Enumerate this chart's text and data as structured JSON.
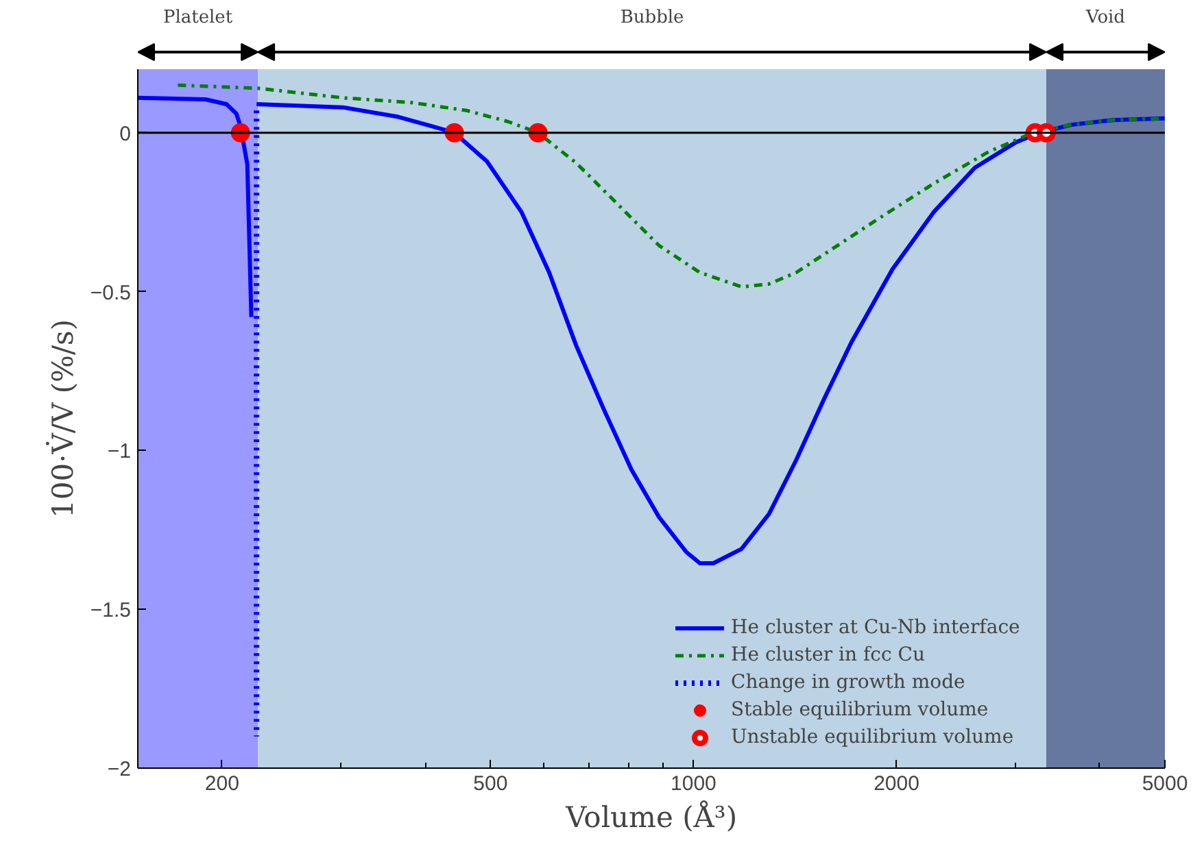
{
  "chart_data": {
    "type": "line",
    "xlabel": "Volume (Å³)",
    "ylabel": "100·V̇/V (%/s)",
    "log": "x",
    "xlim": [
      150,
      5000
    ],
    "ylim": [
      -2,
      0.2
    ],
    "xticks": [
      200,
      {
        "value": 300,
        "label": null
      },
      {
        "value": 400,
        "label": null
      },
      500,
      {
        "value": 600,
        "label": null
      },
      {
        "value": 700,
        "label": null
      },
      {
        "value": 800,
        "label": null
      },
      {
        "value": 900,
        "label": null
      },
      1000,
      2000,
      {
        "value": 3000,
        "label": null
      },
      {
        "value": 4000,
        "label": null
      },
      5000
    ],
    "yticks": [
      -2,
      -1.5,
      -1,
      -0.5,
      0
    ],
    "legend": "bottom right",
    "bands": [
      {
        "axis": "x",
        "from": 150,
        "to": 226,
        "label": "Platelet",
        "color": "#9999ff"
      },
      {
        "axis": "x",
        "from": 226,
        "to": 3335,
        "label": "Bubble",
        "color": "#bbd3e4"
      },
      {
        "axis": "x",
        "from": 3335,
        "to": 5000,
        "label": "Void",
        "color": "#6677a0"
      }
    ],
    "ref_lines": [
      {
        "axis": "y",
        "value": 0,
        "color": "#000000"
      }
    ],
    "series": [
      {
        "name": "He cluster at Cu-Nb interface",
        "line_style": "solid",
        "color": "#0000ff",
        "x": [
          150,
          189,
          203,
          210,
          213,
          218,
          221,
          null,
          225,
          302,
          365,
          410,
          442,
          494,
          556,
          611,
          670,
          736,
          809,
          889,
          976,
          1022,
          1070,
          1178,
          1294,
          1420,
          1560,
          1714,
          1972,
          2270,
          2613,
          3006,
          3255,
          3633,
          4180,
          5000
        ],
        "values": [
          0.11,
          0.105,
          0.09,
          0.06,
          0.02,
          -0.1,
          -0.58,
          null,
          0.09,
          0.08,
          0.05,
          0.02,
          0,
          -0.09,
          -0.25,
          -0.44,
          -0.67,
          -0.87,
          -1.06,
          -1.21,
          -1.32,
          -1.355,
          -1.355,
          -1.31,
          -1.2,
          -1.03,
          -0.84,
          -0.66,
          -0.43,
          -0.25,
          -0.11,
          -0.03,
          0,
          0.025,
          0.04,
          0.045
        ]
      },
      {
        "name": "He cluster in fcc Cu",
        "line_style": "dashdot",
        "color": "#008000",
        "x": [
          172,
          226,
          302,
          382,
          461,
          531,
          588,
          670,
          772,
          889,
          1022,
          1178,
          1294,
          1420,
          1635,
          1882,
          2270,
          2738,
          3185,
          3633,
          4180,
          5000
        ],
        "values": [
          0.15,
          0.14,
          0.11,
          0.095,
          0.07,
          0.035,
          0,
          -0.095,
          -0.225,
          -0.355,
          -0.44,
          -0.485,
          -0.476,
          -0.44,
          -0.355,
          -0.27,
          -0.16,
          -0.06,
          0,
          0.025,
          0.04,
          0.045
        ]
      },
      {
        "name": "Change in growth mode",
        "line_style": "dotted",
        "color": "#0000ff",
        "x": [
          225,
          225
        ],
        "values": [
          0.07,
          -1.9
        ]
      },
      {
        "name": "Stable equilibrium volume",
        "type": "scatter",
        "marker": "circle",
        "color": "#ff0000",
        "x": [
          213,
          442,
          588
        ],
        "values": [
          0,
          0,
          0
        ]
      },
      {
        "name": "Unstable equilibrium volume",
        "type": "scatter",
        "marker": "circle_dot",
        "color": "#ff0000",
        "x": [
          3210,
          3335
        ],
        "values": [
          0,
          0
        ]
      }
    ]
  }
}
